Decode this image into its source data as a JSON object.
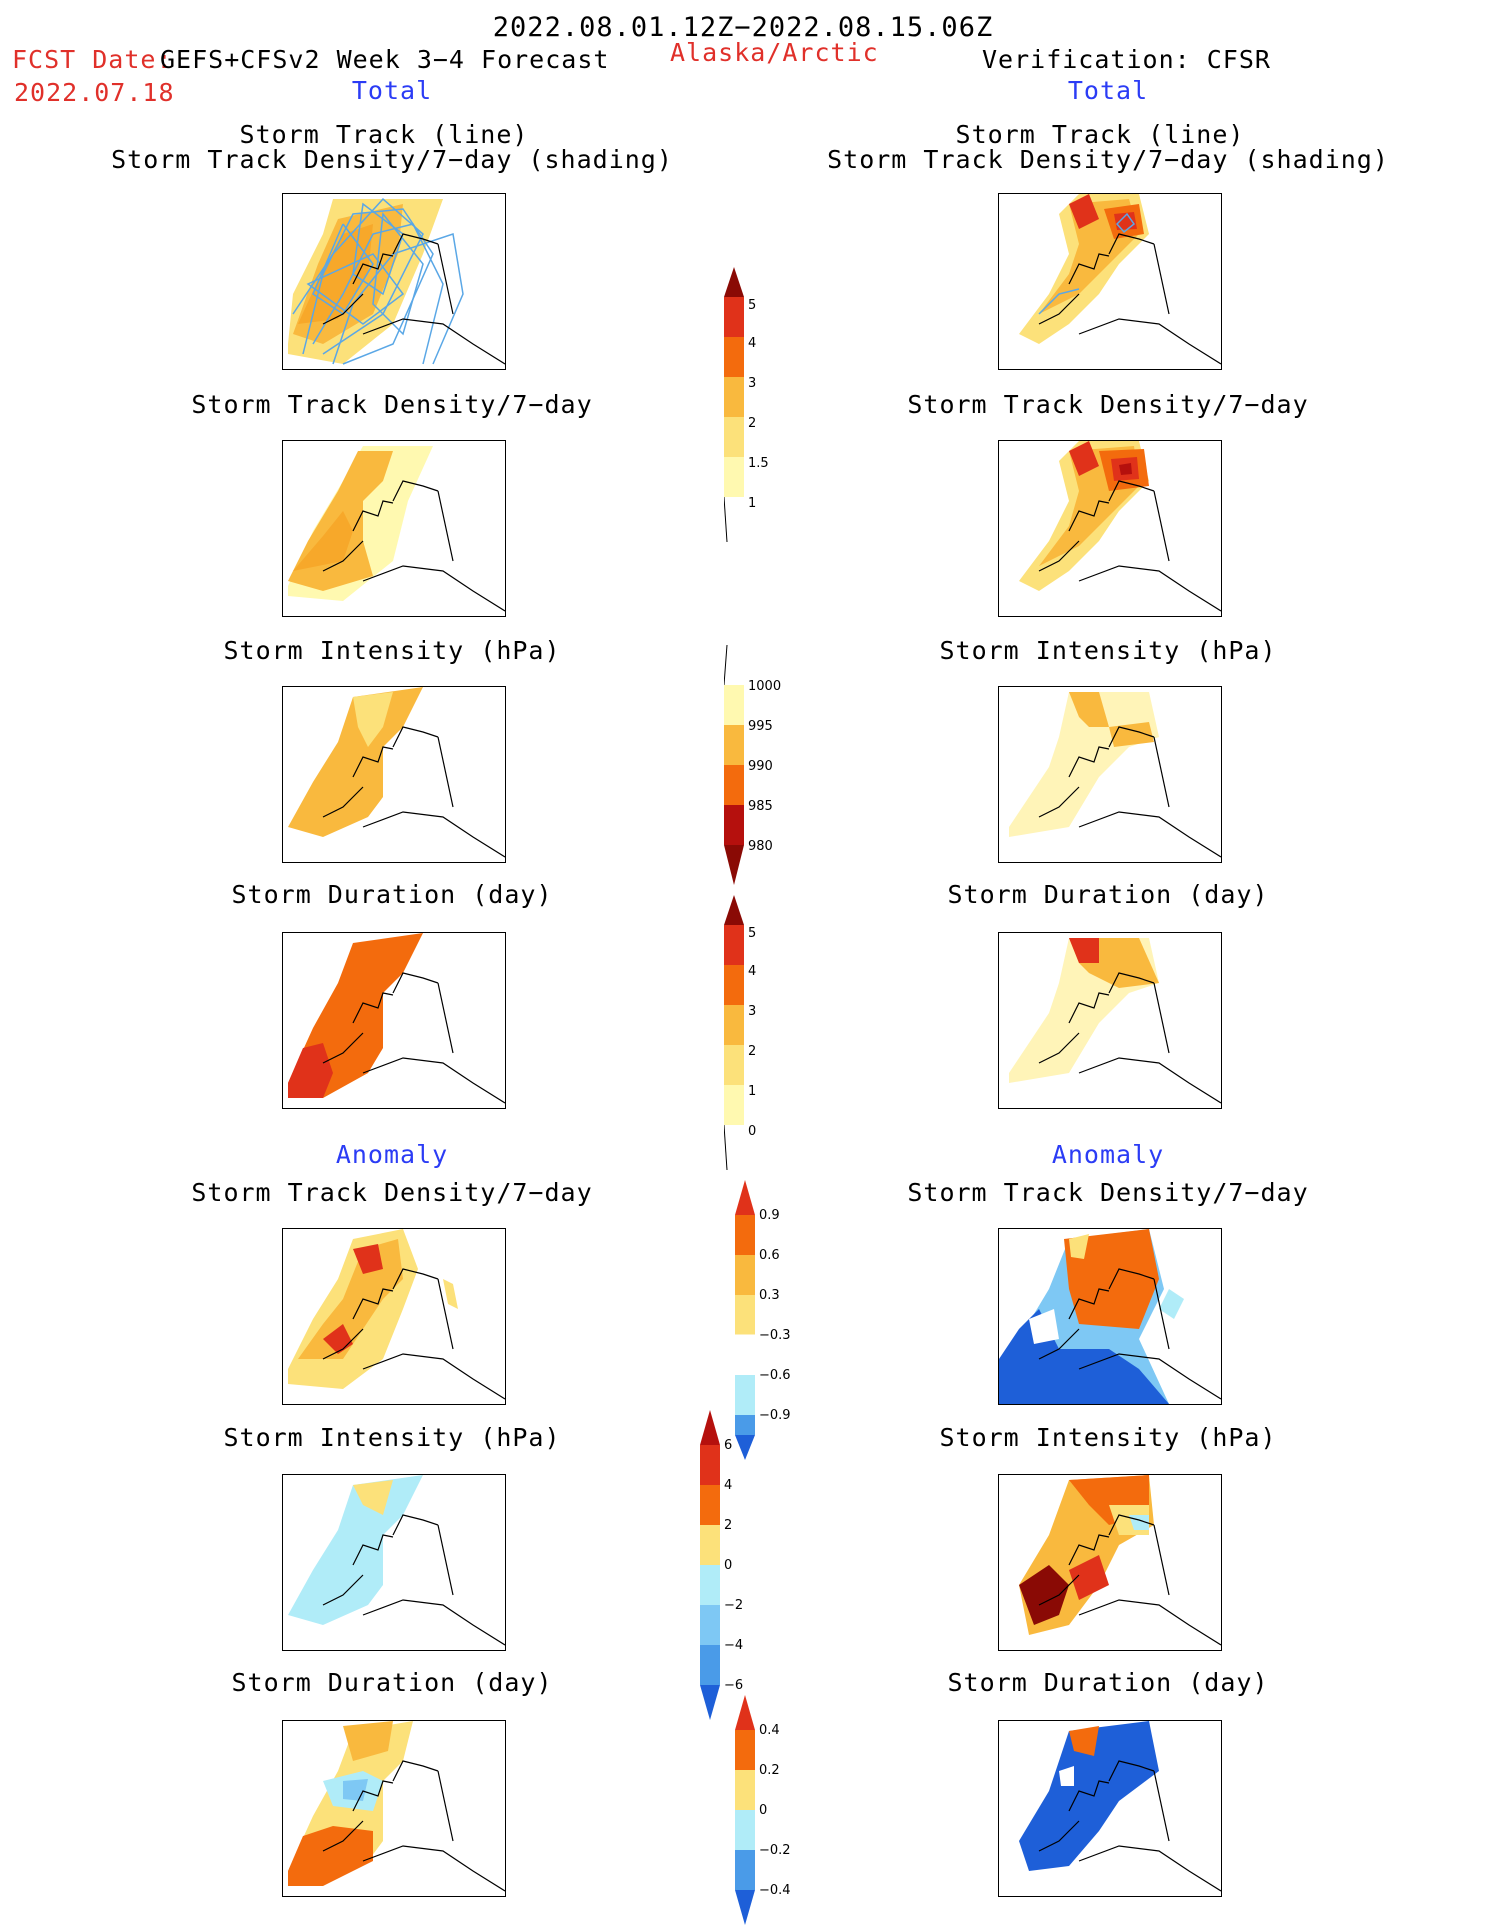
{
  "header": {
    "date_range": "2022.08.01.12Z−2022.08.15.06Z",
    "fcst_prefix": "FCST Date:",
    "fcst_model": "GEFS+CFSv2 Week 3−4 Forecast",
    "fcst_date": "2022.07.18",
    "region": "Alaska/Arctic",
    "verification": "Verification: CFSR"
  },
  "sections": {
    "left_total": "Total",
    "right_total": "Total",
    "left_anomaly": "Anomaly",
    "right_anomaly": "Anomaly"
  },
  "panels": {
    "track_title_1": "Storm Track (line)",
    "track_title_2": "Storm Track Density/7−day (shading)",
    "density": "Storm Track Density/7−day",
    "intensity": "Storm Intensity (hPa)",
    "duration": "Storm Duration (day)"
  },
  "colorbars": {
    "density_total": [
      "5",
      "4",
      "3",
      "2",
      "1.5",
      "1"
    ],
    "intensity_total": [
      "1000",
      "995",
      "990",
      "985",
      "980"
    ],
    "duration_total": [
      "5",
      "4",
      "3",
      "2",
      "1",
      "0"
    ],
    "density_anom": [
      "0.9",
      "0.6",
      "0.3",
      "−0.3",
      "−0.6",
      "−0.9"
    ],
    "intensity_anom": [
      "6",
      "4",
      "2",
      "0",
      "−2",
      "−4",
      "−6"
    ],
    "duration_anom": [
      "0.4",
      "0.2",
      "0",
      "−0.2",
      "−0.4"
    ]
  },
  "colors": {
    "warm": [
      "#fff9b0",
      "#fce17a",
      "#f9b93e",
      "#f59b12",
      "#f36b0d",
      "#e0321a",
      "#b5100d",
      "#8a0a05"
    ],
    "cool": [
      "#b0ecf8",
      "#7ec8f4",
      "#4a9be8",
      "#1e5fd8"
    ],
    "track_line": "#5aa7e6"
  }
}
